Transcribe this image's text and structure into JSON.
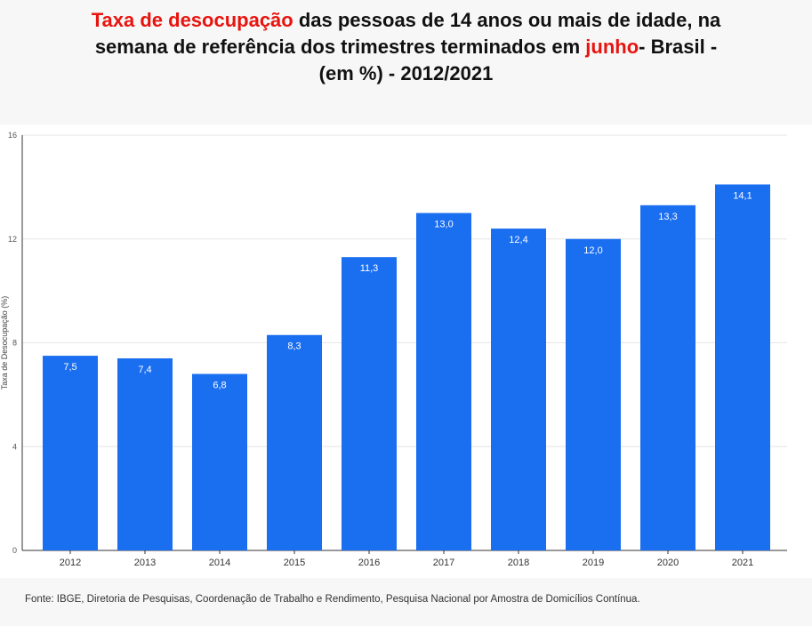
{
  "title": {
    "part1": "Taxa de desocupação",
    "part2": " das pessoas de 14 anos ou mais de idade, na",
    "part3": "semana de referência dos trimestres terminados em ",
    "part4": "junho",
    "part5": "- Brasil -",
    "part6": "(em %) - 2012/2021"
  },
  "source": "Fonte: IBGE, Diretoria de Pesquisas, Coordenação de Trabalho e Rendimento, Pesquisa Nacional por Amostra de Domicílios Contínua.",
  "colors": {
    "bar": "#1a6ef0",
    "highlight": "#e8140f"
  },
  "chart_data": {
    "type": "bar",
    "categories": [
      "2012",
      "2013",
      "2014",
      "2015",
      "2016",
      "2017",
      "2018",
      "2019",
      "2020",
      "2021"
    ],
    "values": [
      7.5,
      7.4,
      6.8,
      8.3,
      11.3,
      13.0,
      12.4,
      12.0,
      13.3,
      14.1
    ],
    "value_labels": [
      "7,5",
      "7,4",
      "6,8",
      "8,3",
      "11,3",
      "13,0",
      "12,4",
      "12,0",
      "13,3",
      "14,1"
    ],
    "ylabel": "Taxa de Desocupação (%)",
    "ylim": [
      0,
      16
    ],
    "yticks": [
      0,
      4,
      8,
      12,
      16
    ],
    "grid": true
  }
}
